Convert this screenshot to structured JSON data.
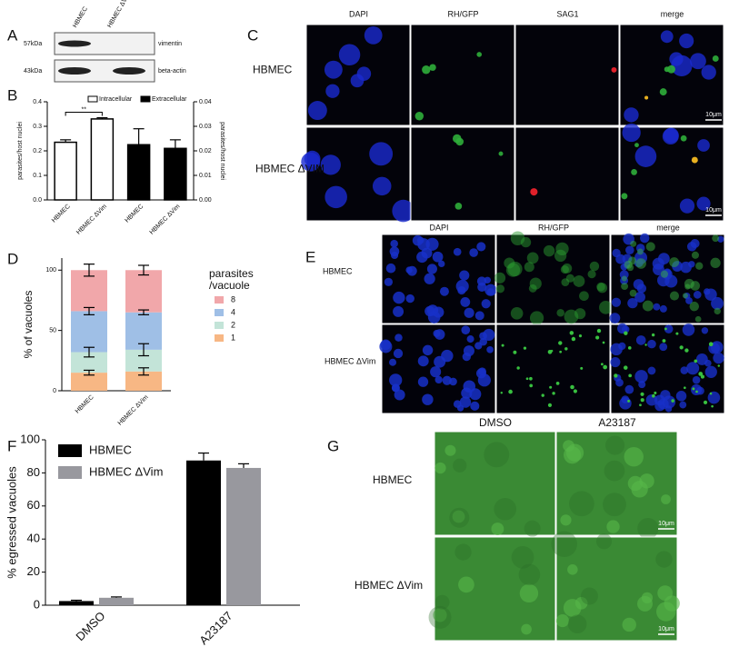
{
  "panels": {
    "a": "A",
    "b": "B",
    "c": "C",
    "d": "D",
    "e": "E",
    "f": "F",
    "g": "G"
  },
  "blot": {
    "columns": [
      "HBMEC",
      "HBMEC ΔVim"
    ],
    "rows": [
      {
        "marker": "57kDa",
        "protein": "vimentin"
      },
      {
        "marker": "43kDa",
        "protein": "beta-actin"
      }
    ]
  },
  "panel_c": {
    "columns": [
      "DAPI",
      "RH/GFP",
      "SAG1",
      "merge"
    ],
    "rows": [
      "HBMEC",
      "HBMEC ΔVIM"
    ],
    "scale_bar": "10μm"
  },
  "panel_e": {
    "columns": [
      "DAPI",
      "RH/GFP",
      "merge"
    ],
    "rows": [
      "HBMEC",
      "HBMEC ΔVim"
    ]
  },
  "panel_g": {
    "columns": [
      "DMSO",
      "A23187"
    ],
    "rows": [
      "HBMEC",
      "HBMEC ΔVim"
    ],
    "scale_bar": "10μm"
  },
  "chart_data": [
    {
      "type": "bar",
      "categories": [
        "HBMEC",
        "HBMEC ΔVim",
        "HBMEC",
        "HBMEC ΔVim"
      ],
      "series": [
        {
          "name": "Intracellular",
          "color": "#ffffff",
          "values": [
            0.235,
            0.33,
            null,
            null
          ],
          "errors": [
            0.01,
            0.005,
            null,
            null
          ]
        },
        {
          "name": "Extracellular",
          "color": "#000000",
          "values": [
            null,
            null,
            0.0225,
            0.021
          ],
          "errors": [
            null,
            null,
            0.0065,
            0.0035
          ],
          "axis": "y2"
        }
      ],
      "ylabel": "parasites/host nuclei",
      "y2label": "parasites/host nuclei",
      "ylim": [
        0,
        0.4
      ],
      "yticks": [
        {
          "value": 0,
          "label": "0.0"
        },
        0.1,
        0.2,
        0.3,
        0.4
      ],
      "y2lim": [
        0,
        0.04
      ],
      "y2ticks": [
        {
          "value": 0,
          "label": "0.00"
        },
        0.01,
        0.02,
        0.03,
        0.04
      ],
      "annotation": "**"
    },
    {
      "type": "stacked_bar",
      "categories": [
        "HBMEC",
        "HBMEC ΔVim"
      ],
      "series": [
        {
          "name": "1",
          "color": "#f7b784",
          "values": [
            15,
            16
          ],
          "errors": [
            2,
            3
          ]
        },
        {
          "name": "2",
          "color": "#c3e4d8",
          "values": [
            17,
            18
          ],
          "errors": [
            4,
            5
          ]
        },
        {
          "name": "4",
          "color": "#9fbfe6",
          "values": [
            34,
            31
          ],
          "errors": [
            3,
            2
          ]
        },
        {
          "name": "8",
          "color": "#f1a7aa",
          "values": [
            34,
            35
          ],
          "errors": [
            5,
            4
          ]
        }
      ],
      "ylabel": "% of vacuoles",
      "legend_title": [
        "parasites",
        "/vacuole"
      ],
      "ylim": [
        0,
        110
      ],
      "yticks": [
        0,
        50,
        100
      ]
    },
    {
      "type": "grouped_bar",
      "categories": [
        "DMSO",
        "A23187"
      ],
      "series": [
        {
          "name": "HBMEC",
          "color": "#000000",
          "values": [
            2.5,
            87.5
          ],
          "errors": [
            0.5,
            4.5
          ]
        },
        {
          "name": "HBMEC ΔVim",
          "color": "#98989e",
          "values": [
            4.5,
            83
          ],
          "errors": [
            0.5,
            2.5
          ]
        }
      ],
      "ylabel": "% egressed vacuoles",
      "ylim": [
        0,
        100
      ],
      "yticks": [
        0,
        20,
        40,
        60,
        80,
        100
      ],
      "legend": "upper left"
    }
  ]
}
